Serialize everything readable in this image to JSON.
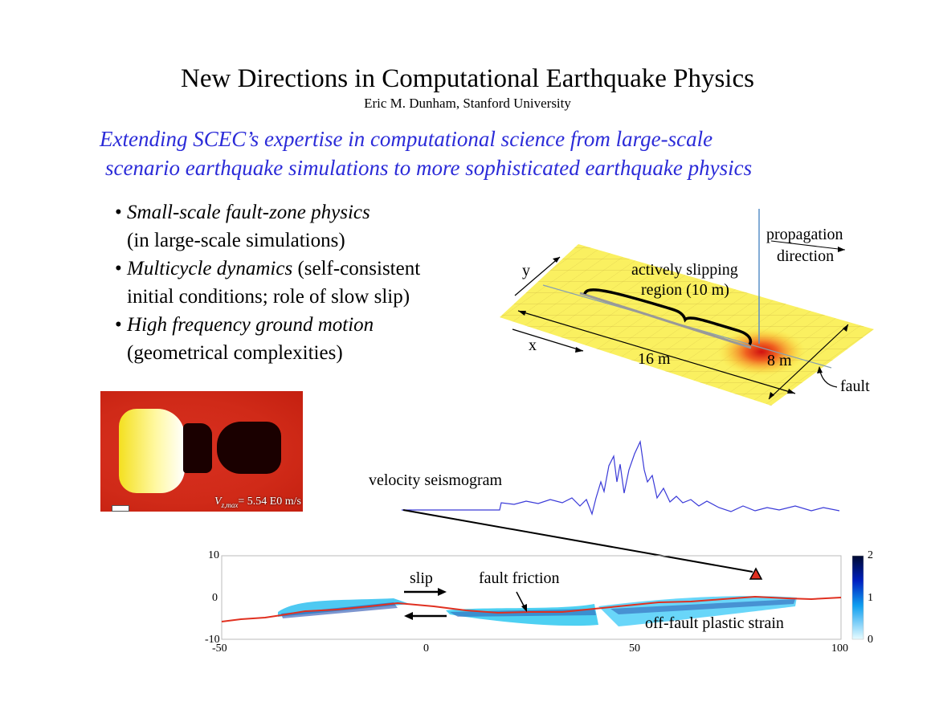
{
  "title": "New Directions in Computational Earthquake Physics",
  "author": "Eric M. Dunham, Stanford University",
  "subtitle_lines": [
    "Extending SCEC’s expertise in computational science from large-scale",
    "scenario earthquake simulations to more sophisticated earthquake physics"
  ],
  "bullets": [
    {
      "italic": "Small-scale fault-zone physics",
      "rest": "",
      "line2": "(in large-scale simulations)"
    },
    {
      "italic": "Multicycle dynamics",
      "rest": " (self-consistent",
      "line2": "initial conditions; role of slow slip)"
    },
    {
      "italic": "High frequency ground motion",
      "rest": "",
      "line2": "(geometrical complexities)"
    }
  ],
  "rupture_figure": {
    "propagation": "propagation",
    "direction": "direction",
    "active_1": "actively slipping",
    "active_2": "region (10 m)",
    "axis_x": "x",
    "axis_y": "y",
    "length": "16 m",
    "width": "8 m",
    "fault": "fault"
  },
  "snapshot": {
    "label_v": "V",
    "label_sub": "z,max",
    "label_value": "= 5.54 E0 m/s"
  },
  "seismogram_label": "velocity seismogram",
  "strain_plot": {
    "yticks": [
      "10",
      "0",
      "-10"
    ],
    "xticks": [
      "-50",
      "0",
      "50",
      "100"
    ],
    "colorbar_ticks": [
      "2",
      "1",
      "0"
    ],
    "slip": "slip",
    "fault_friction": "fault friction",
    "plastic_strain": "off-fault plastic strain"
  },
  "colors": {
    "subtitle": "#2b2bd8",
    "fault": "#e03020",
    "strain": "#00aaf0",
    "seismogram": "#3a3ad8"
  }
}
